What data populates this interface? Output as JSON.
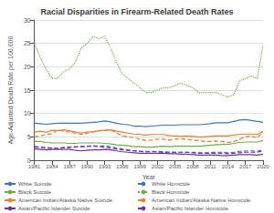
{
  "chart_data": {
    "type": "line",
    "title": "Racial Disparities in Firearm-Related Death Rates",
    "xlabel": "Year",
    "ylabel": "Age-Adjusted Death Rate per 100,000",
    "x": [
      1981,
      1982,
      1983,
      1984,
      1985,
      1986,
      1987,
      1988,
      1989,
      1990,
      1991,
      1992,
      1993,
      1994,
      1995,
      1996,
      1997,
      1998,
      1999,
      2000,
      2001,
      2002,
      2003,
      2004,
      2005,
      2006,
      2007,
      2008,
      2009,
      2010,
      2011,
      2012,
      2013,
      2014,
      2015,
      2016,
      2017,
      2018,
      2019,
      2020
    ],
    "xlim": [
      1981,
      2020
    ],
    "xticks": [
      1981,
      1984,
      1987,
      1990,
      1993,
      1996,
      1999,
      2002,
      2005,
      2008,
      2011,
      2014,
      2017,
      2020
    ],
    "ylim": [
      0,
      30
    ],
    "yticks": [
      0,
      5,
      10,
      15,
      20,
      25,
      30
    ],
    "grid": true,
    "legend": "bottom",
    "series": [
      {
        "name": "White Suicide",
        "color": "#4472C4",
        "line_style": "solid",
        "values": [
          7.9,
          7.8,
          7.7,
          7.8,
          7.9,
          7.9,
          7.9,
          7.9,
          7.9,
          8.0,
          8.1,
          8.2,
          8.4,
          8.2,
          7.9,
          7.7,
          7.6,
          7.3,
          7.3,
          7.2,
          7.3,
          7.4,
          7.5,
          7.5,
          7.5,
          7.6,
          7.6,
          7.6,
          7.6,
          7.7,
          7.8,
          8.0,
          8.0,
          8.0,
          8.3,
          8.6,
          8.7,
          8.5,
          8.3,
          8.1
        ]
      },
      {
        "name": "Black Suicide",
        "color": "#70AD47",
        "line_style": "solid",
        "values": [
          4.0,
          4.0,
          3.8,
          3.7,
          3.7,
          3.7,
          3.6,
          3.6,
          3.7,
          3.7,
          3.7,
          3.7,
          3.6,
          3.5,
          3.3,
          3.2,
          3.1,
          2.9,
          2.9,
          2.8,
          2.8,
          2.9,
          3.0,
          2.9,
          3.0,
          3.0,
          3.0,
          3.0,
          3.0,
          3.1,
          3.2,
          3.3,
          3.4,
          3.4,
          3.6,
          3.8,
          3.9,
          3.9,
          3.9,
          4.2
        ]
      },
      {
        "name": "American Indian/Alaska Native Suicide",
        "color": "#ED7D31",
        "line_style": "solid",
        "values": [
          6.0,
          6.2,
          6.0,
          6.4,
          6.3,
          6.5,
          6.3,
          6.0,
          5.8,
          6.0,
          6.1,
          6.3,
          6.4,
          6.5,
          6.2,
          6.0,
          5.8,
          5.6,
          5.5,
          5.4,
          5.5,
          5.5,
          5.5,
          5.3,
          5.2,
          5.1,
          5.2,
          5.1,
          5.0,
          5.0,
          5.1,
          5.2,
          5.2,
          5.2,
          5.4,
          5.5,
          5.6,
          5.6,
          5.5,
          6.2
        ]
      },
      {
        "name": "Asian/Pacific Islander Suicide",
        "color": "#7030A0",
        "line_style": "solid",
        "values": [
          2.4,
          2.3,
          2.2,
          2.3,
          2.3,
          2.3,
          2.3,
          2.1,
          2.0,
          2.1,
          2.2,
          2.2,
          2.3,
          2.2,
          2.0,
          1.8,
          1.7,
          1.6,
          1.5,
          1.5,
          1.5,
          1.5,
          1.5,
          1.4,
          1.4,
          1.3,
          1.3,
          1.2,
          1.1,
          1.1,
          1.1,
          1.1,
          1.0,
          1.0,
          1.1,
          1.2,
          1.2,
          1.2,
          1.1,
          1.3
        ]
      },
      {
        "name": "White Homicide",
        "color": "#4472C4",
        "line_style": "dashed",
        "values": [
          3.0,
          2.8,
          2.6,
          2.5,
          2.5,
          2.7,
          2.7,
          2.8,
          2.9,
          3.0,
          3.1,
          3.0,
          3.1,
          2.9,
          2.6,
          2.4,
          2.2,
          2.0,
          1.9,
          1.9,
          1.9,
          1.9,
          1.8,
          1.7,
          1.7,
          1.7,
          1.7,
          1.7,
          1.6,
          1.6,
          1.6,
          1.7,
          1.7,
          1.6,
          1.7,
          1.9,
          2.0,
          2.0,
          1.9,
          2.3
        ]
      },
      {
        "name": "Black Homicide",
        "color": "#70AD47",
        "line_style": "dotted",
        "values": [
          25.0,
          22.0,
          19.5,
          17.5,
          17.5,
          19.0,
          19.5,
          21.0,
          24.0,
          25.0,
          26.5,
          26.0,
          26.5,
          24.0,
          21.0,
          18.5,
          17.5,
          16.5,
          15.5,
          14.5,
          14.5,
          15.0,
          15.5,
          15.5,
          16.0,
          16.5,
          16.0,
          15.5,
          14.5,
          14.5,
          14.5,
          14.5,
          14.0,
          13.5,
          14.0,
          17.0,
          17.5,
          18.0,
          17.5,
          24.5
        ]
      },
      {
        "name": "American Indian/Alaska Native Homicide",
        "color": "#ED7D31",
        "line_style": "dashed",
        "values": [
          5.0,
          5.2,
          5.5,
          5.7,
          6.5,
          6.2,
          6.0,
          5.8,
          5.5,
          5.8,
          6.0,
          6.3,
          6.4,
          6.5,
          5.8,
          5.2,
          5.0,
          4.8,
          4.5,
          4.2,
          4.3,
          4.5,
          4.5,
          4.3,
          4.5,
          4.6,
          4.5,
          4.3,
          4.2,
          4.0,
          4.0,
          4.1,
          4.0,
          3.8,
          4.0,
          4.5,
          5.0,
          5.2,
          4.8,
          6.0
        ]
      },
      {
        "name": "Asian/Pacific Islander Homicide",
        "color": "#7030A0",
        "line_style": "dashed",
        "values": [
          2.8,
          2.7,
          2.7,
          2.6,
          2.5,
          2.7,
          2.8,
          2.9,
          2.9,
          3.0,
          3.0,
          2.9,
          2.8,
          2.6,
          2.4,
          2.2,
          2.1,
          2.0,
          1.9,
          1.8,
          1.8,
          1.8,
          1.7,
          1.7,
          1.7,
          1.7,
          1.7,
          1.6,
          1.5,
          1.5,
          1.5,
          1.5,
          1.5,
          1.4,
          1.5,
          1.6,
          1.7,
          1.7,
          1.7,
          2.0
        ]
      }
    ]
  }
}
